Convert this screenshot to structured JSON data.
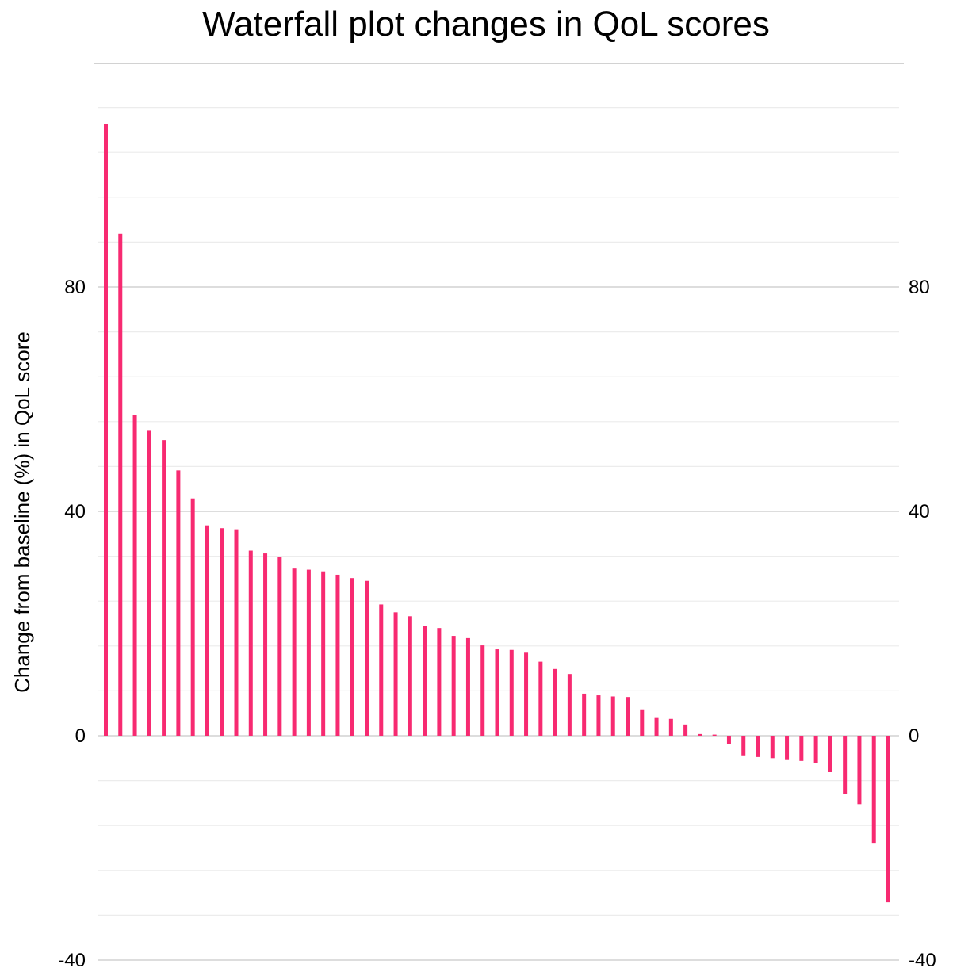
{
  "chart_data": {
    "type": "bar",
    "title": "Waterfall plot changes in QoL scores",
    "ylabel": "Change from baseline (%) in QoL score",
    "xlabel": "",
    "ylim": [
      -40,
      120
    ],
    "yticks": [
      -40,
      0,
      40,
      80
    ],
    "ytick_labels": [
      "-40",
      "0",
      "40",
      "80"
    ],
    "minor_step": 8,
    "grid": true,
    "right_axis_labels": true,
    "bar_color": "#f72a71",
    "values": [
      109.0,
      89.5,
      57.2,
      54.5,
      52.7,
      47.3,
      42.3,
      37.5,
      37.0,
      36.8,
      33.0,
      32.5,
      31.8,
      29.8,
      29.6,
      29.3,
      28.7,
      28.1,
      27.6,
      23.4,
      22.0,
      21.3,
      19.6,
      19.2,
      17.8,
      17.4,
      16.1,
      15.4,
      15.3,
      14.8,
      13.2,
      11.9,
      11.0,
      7.5,
      7.2,
      7.0,
      6.9,
      4.7,
      3.3,
      3.0,
      2.0,
      0.3,
      0.2,
      -1.5,
      -3.5,
      -3.8,
      -4.0,
      -4.2,
      -4.5,
      -4.9,
      -6.5,
      -10.4,
      -12.2,
      -19.1,
      -29.7
    ]
  }
}
